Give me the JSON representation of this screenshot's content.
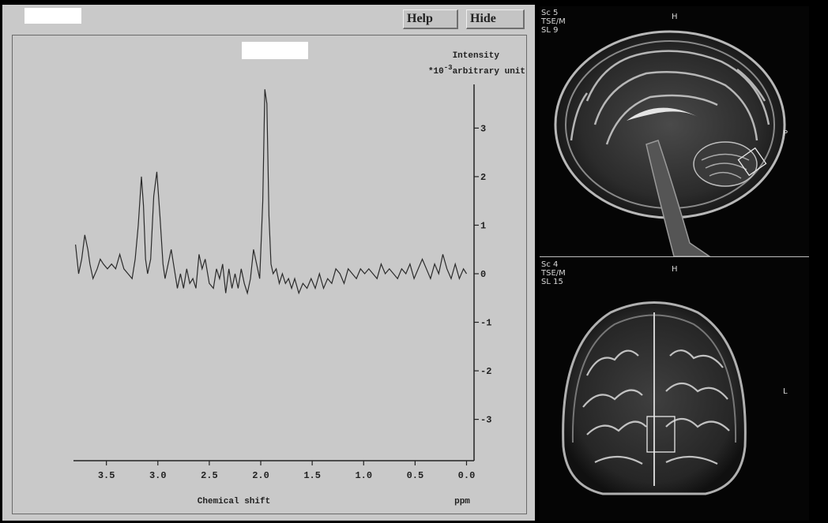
{
  "toolbar": {
    "help_label": "Help",
    "hide_label": "Hide"
  },
  "chart_data": {
    "type": "line",
    "title": "",
    "xlabel": "Chemical shift",
    "xunit": "ppm",
    "ylabel": "Intensity",
    "yunit_prefix": "*10",
    "yunit_exp": "-3",
    "yunit_suffix": "arbitrary unit",
    "xlim": [
      3.82,
      -0.05
    ],
    "ylim": [
      -3.9,
      3.9
    ],
    "x_ticks": [
      3.5,
      3.0,
      2.5,
      2.0,
      1.5,
      1.0,
      0.5,
      0.0
    ],
    "x_tick_labels": [
      "3.5",
      "3.0",
      "2.5",
      "2.0",
      "1.5",
      "1.0",
      "0.5",
      "0.0"
    ],
    "y_ticks": [
      3,
      2,
      1,
      0,
      -1,
      -2,
      -3
    ],
    "y_tick_labels": [
      "3",
      "2",
      "1",
      "0",
      "-1",
      "-2",
      "-3"
    ],
    "x_reversed": true,
    "series": [
      {
        "values_x": [
          3.8,
          3.77,
          3.74,
          3.71,
          3.68,
          3.66,
          3.63,
          3.59,
          3.56,
          3.53,
          3.49,
          3.45,
          3.41,
          3.37,
          3.33,
          3.29,
          3.25,
          3.22,
          3.19,
          3.16,
          3.14,
          3.12,
          3.1,
          3.07,
          3.04,
          3.01,
          2.98,
          2.95,
          2.93,
          2.9,
          2.87,
          2.84,
          2.81,
          2.78,
          2.75,
          2.72,
          2.69,
          2.66,
          2.63,
          2.6,
          2.57,
          2.54,
          2.5,
          2.46,
          2.43,
          2.4,
          2.37,
          2.34,
          2.31,
          2.28,
          2.25,
          2.22,
          2.19,
          2.16,
          2.13,
          2.1,
          2.07,
          2.04,
          2.01,
          1.98,
          1.96,
          1.94,
          1.92,
          1.9,
          1.88,
          1.85,
          1.82,
          1.79,
          1.76,
          1.73,
          1.7,
          1.67,
          1.63,
          1.59,
          1.55,
          1.51,
          1.47,
          1.43,
          1.39,
          1.35,
          1.31,
          1.27,
          1.23,
          1.19,
          1.15,
          1.11,
          1.07,
          1.03,
          0.99,
          0.95,
          0.91,
          0.87,
          0.83,
          0.79,
          0.75,
          0.71,
          0.67,
          0.63,
          0.59,
          0.55,
          0.51,
          0.47,
          0.43,
          0.39,
          0.35,
          0.31,
          0.27,
          0.23,
          0.19,
          0.15,
          0.11,
          0.07,
          0.03,
          0.0
        ],
        "values_y": [
          0.6,
          0.0,
          0.3,
          0.8,
          0.5,
          0.2,
          -0.1,
          0.1,
          0.3,
          0.2,
          0.1,
          0.2,
          0.1,
          0.4,
          0.1,
          0.0,
          -0.1,
          0.3,
          1.0,
          2.0,
          1.4,
          0.3,
          0.0,
          0.3,
          1.6,
          2.1,
          1.2,
          0.2,
          -0.1,
          0.2,
          0.5,
          0.1,
          -0.3,
          0.0,
          -0.3,
          0.1,
          -0.2,
          -0.1,
          -0.3,
          0.4,
          0.1,
          0.3,
          -0.2,
          -0.3,
          0.1,
          -0.1,
          0.2,
          -0.4,
          0.1,
          -0.3,
          0.0,
          -0.3,
          0.1,
          -0.2,
          -0.4,
          -0.1,
          0.5,
          0.2,
          -0.1,
          1.5,
          3.8,
          3.5,
          1.2,
          0.2,
          0.0,
          0.1,
          -0.2,
          0.0,
          -0.2,
          -0.1,
          -0.3,
          -0.1,
          -0.4,
          -0.2,
          -0.3,
          -0.1,
          -0.3,
          0.0,
          -0.3,
          -0.1,
          -0.2,
          0.1,
          0.0,
          -0.2,
          0.1,
          0.0,
          -0.1,
          0.1,
          0.0,
          0.1,
          0.0,
          -0.1,
          0.2,
          0.0,
          0.1,
          0.0,
          -0.1,
          0.1,
          0.0,
          0.2,
          -0.1,
          0.1,
          0.3,
          0.1,
          -0.1,
          0.2,
          0.0,
          0.4,
          0.1,
          -0.1,
          0.2,
          -0.1,
          0.1,
          0.0
        ]
      }
    ]
  },
  "mri_top": {
    "line1": "Sc 5",
    "line2": "TSE/M",
    "line3": "SL 9",
    "orient_top": "H",
    "orient_right": "P"
  },
  "mri_bottom": {
    "line1": "Sc 4",
    "line2": "TSE/M",
    "line3": "SL 15",
    "orient_top": "H",
    "orient_right": "L"
  }
}
